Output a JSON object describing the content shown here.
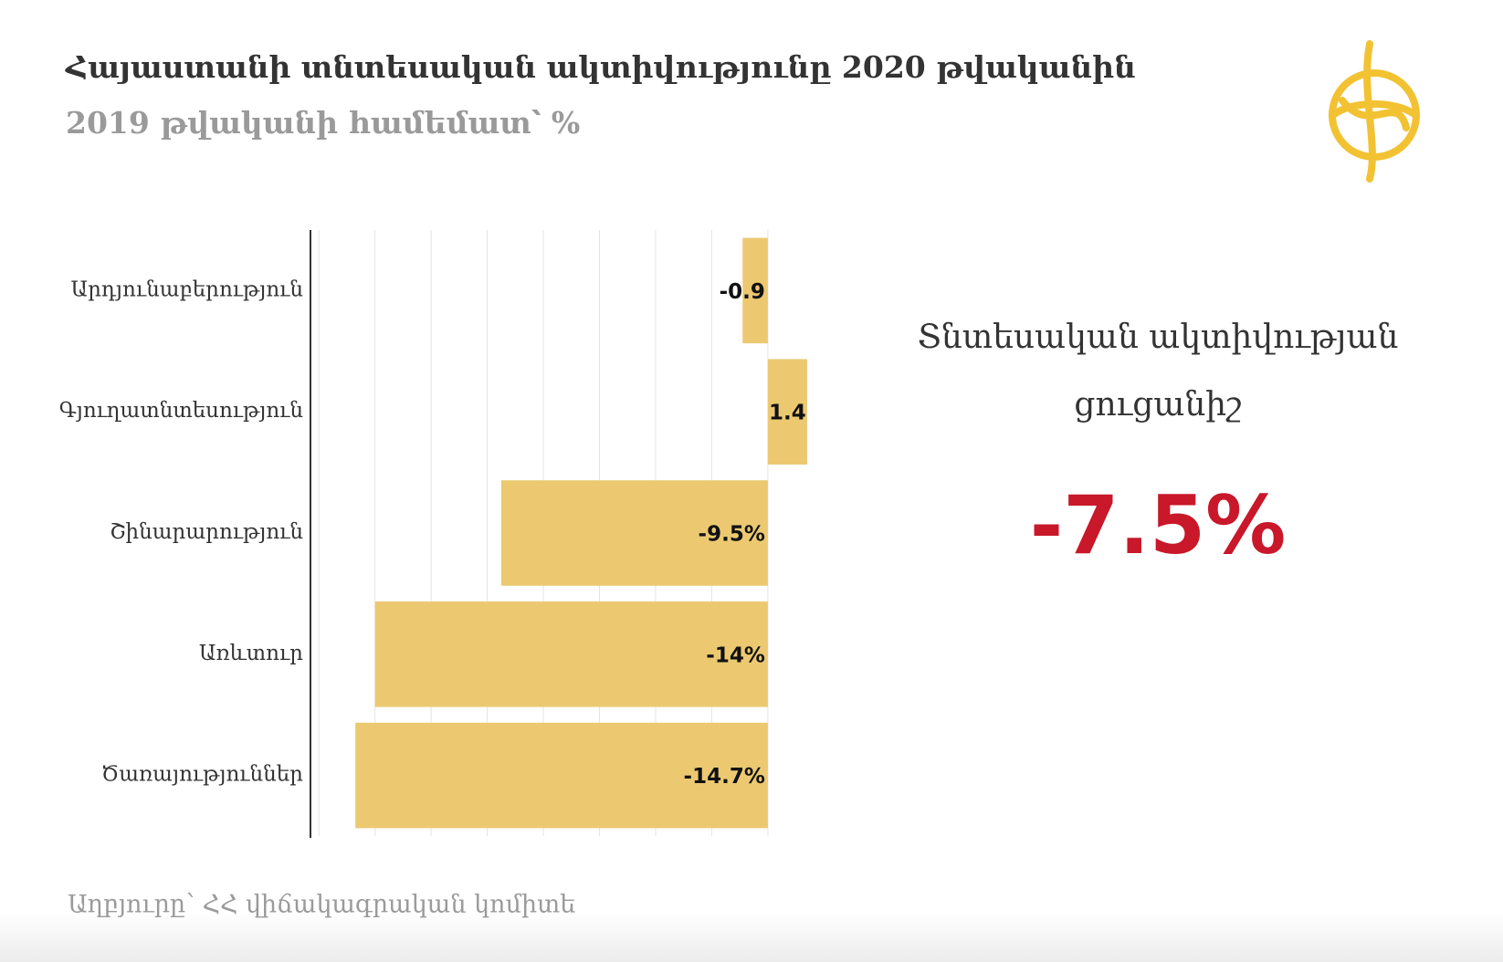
{
  "chart_data": {
    "type": "barh",
    "title": "Հայաստանի տնտեսական ակտիվությունը 2020 թվականին",
    "subtitle": "2019 թվականի համեմատ՝ %",
    "categories": [
      "Արդյունաբերություն",
      "Գյուղատնտեսություն",
      "Շինարարություն",
      "Առևտուր",
      "Ծառայություններ"
    ],
    "values": [
      -0.9,
      1.4,
      -9.5,
      -14,
      -14.7
    ],
    "value_labels": [
      "-0.9",
      "1.4",
      "-9.5%",
      "-14%",
      "-14.7%"
    ],
    "color": "#ecc971",
    "xlim": [
      -16.3,
      1.5
    ],
    "xticks": [
      -16,
      -14,
      -12,
      -10,
      -8,
      -6,
      -4,
      -2,
      0
    ],
    "grid": true,
    "annotation": {
      "label": "Տնտեսական ակտիվության ցուցանիշ",
      "value": "-7.5%"
    },
    "source": "Աղբյուրը՝ ՀՀ վիճակագրական կոմիտե"
  }
}
